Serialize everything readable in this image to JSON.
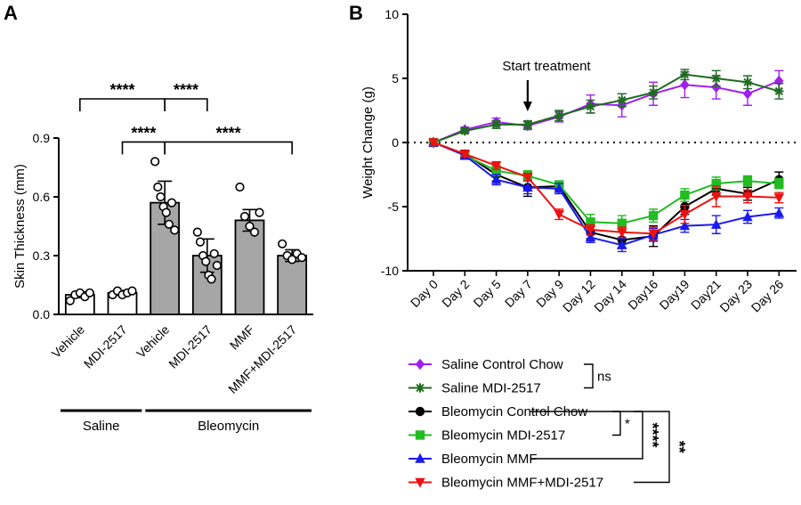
{
  "panel_labels": [
    "A",
    "B"
  ],
  "chart_data": [
    {
      "type": "bar",
      "panel": "A",
      "ylabel": "Skin Thickness (mm)",
      "ylim": [
        0,
        0.9
      ],
      "yticks": [
        "0.0",
        "0.3",
        "0.6",
        "0.9"
      ],
      "categories": [
        "Vehicle",
        "MDI-2517",
        "Vehicle",
        "MDI-2517",
        "MMF",
        "MMF+MDI-2517"
      ],
      "bar_colors": [
        "#ffffff",
        "#ffffff",
        "#a6a6a6",
        "#a6a6a6",
        "#a6a6a6",
        "#a6a6a6"
      ],
      "values": [
        0.1,
        0.11,
        0.57,
        0.3,
        0.48,
        0.3
      ],
      "errors": [
        0.015,
        0.012,
        0.11,
        0.085,
        0.055,
        0.03
      ],
      "points": [
        [
          0.07,
          0.1,
          0.11,
          0.09,
          0.11
        ],
        [
          0.1,
          0.12,
          0.1,
          0.11,
          0.12
        ],
        [
          0.78,
          0.65,
          0.6,
          0.55,
          0.52,
          0.46,
          0.57,
          0.43
        ],
        [
          0.42,
          0.37,
          0.3,
          0.27,
          0.2,
          0.18,
          0.31,
          0.25
        ],
        [
          0.65,
          0.5,
          0.45,
          0.42,
          0.52
        ],
        [
          0.36,
          0.3,
          0.28,
          0.31,
          0.29
        ]
      ],
      "groups": [
        {
          "label": "Saline",
          "from": 0,
          "to": 1
        },
        {
          "label": "Bleomycin",
          "from": 2,
          "to": 5
        }
      ],
      "comparisons": [
        {
          "a": 0,
          "b": 2,
          "label": "****",
          "level": 1.1
        },
        {
          "a": 2,
          "b": 3,
          "label": "****",
          "level": 1.1
        },
        {
          "a": 1,
          "b": 2,
          "label": "****",
          "level": 0.88
        },
        {
          "a": 2,
          "b": 5,
          "label": "****",
          "level": 0.88
        }
      ]
    },
    {
      "type": "line",
      "panel": "B",
      "ylabel": "Weight Change (g)",
      "ylim": [
        -10,
        10
      ],
      "yticks": [
        "-10",
        "-5",
        "0",
        "5",
        "10"
      ],
      "categories": [
        "Day 0",
        "Day 2",
        "Day 5",
        "Day 7",
        "Day 9",
        "Day 12",
        "Day 14",
        "Day16",
        "Day19",
        "Day21",
        "Day 23",
        "Day 26"
      ],
      "annotation": {
        "text": "Start treatment",
        "at_category": "Day 7"
      },
      "zero_line": "dotted",
      "series": [
        {
          "name": "Saline Control Chow",
          "color": "#a020f0",
          "marker": "diamond",
          "values": [
            0,
            1.0,
            1.6,
            1.3,
            2.0,
            3.0,
            2.9,
            3.8,
            4.5,
            4.3,
            3.8,
            4.8
          ],
          "errors": [
            0.2,
            0.2,
            0.3,
            0.3,
            0.4,
            0.7,
            0.9,
            0.9,
            1.0,
            0.9,
            0.9,
            0.8
          ]
        },
        {
          "name": "Saline MDI-2517",
          "color": "#1f6b1f",
          "marker": "asterisk",
          "values": [
            0,
            0.9,
            1.4,
            1.4,
            2.1,
            2.8,
            3.3,
            3.9,
            5.3,
            5.0,
            4.7,
            4.0
          ],
          "errors": [
            0.2,
            0.2,
            0.3,
            0.3,
            0.4,
            0.5,
            0.5,
            0.5,
            0.4,
            0.6,
            0.5,
            0.6
          ]
        },
        {
          "name": "Bleomycin Control Chow",
          "color": "#000000",
          "marker": "circle",
          "values": [
            0,
            -0.9,
            -2.5,
            -3.5,
            -3.4,
            -7.0,
            -7.6,
            -7.3,
            -5.0,
            -3.6,
            -4.0,
            -2.9
          ],
          "errors": [
            0.2,
            0.3,
            0.5,
            0.7,
            0.3,
            0.5,
            0.6,
            0.8,
            0.6,
            0.5,
            0.5,
            0.6
          ]
        },
        {
          "name": "Bleomycin MDI-2517",
          "color": "#22bb22",
          "marker": "square",
          "values": [
            0,
            -1.0,
            -2.2,
            -2.6,
            -3.3,
            -6.2,
            -6.3,
            -5.7,
            -4.1,
            -3.2,
            -3.0,
            -3.2
          ],
          "errors": [
            0.2,
            0.3,
            0.4,
            0.4,
            0.3,
            0.6,
            0.6,
            0.5,
            0.5,
            0.5,
            0.4,
            0.4
          ]
        },
        {
          "name": "Bleomycin MMF",
          "color": "#1a1aee",
          "marker": "triangle",
          "values": [
            0,
            -1.0,
            -2.9,
            -3.5,
            -3.6,
            -7.4,
            -8.0,
            -7.2,
            -6.5,
            -6.4,
            -5.8,
            -5.5
          ],
          "errors": [
            0.2,
            0.3,
            0.4,
            0.5,
            0.4,
            0.4,
            0.5,
            0.5,
            0.5,
            0.7,
            0.5,
            0.4
          ]
        },
        {
          "name": "Bleomycin MMF+MDI-2517",
          "color": "#ee1111",
          "marker": "triangle-down",
          "values": [
            0,
            -0.9,
            -1.8,
            -2.7,
            -5.6,
            -6.8,
            -7.0,
            -7.1,
            -5.6,
            -4.2,
            -4.2,
            -4.3
          ],
          "errors": [
            0.2,
            0.2,
            0.3,
            0.3,
            0.4,
            0.4,
            0.4,
            0.5,
            0.7,
            0.8,
            0.5,
            0.4
          ]
        }
      ],
      "legend_position": "bottom",
      "legend_brackets": [
        {
          "rows": [
            0,
            1
          ],
          "label": "ns"
        },
        {
          "rows": [
            2,
            3
          ],
          "label": "*"
        },
        {
          "rows": [
            2,
            4
          ],
          "label": "****"
        },
        {
          "rows": [
            2,
            5
          ],
          "label": "**"
        }
      ]
    }
  ]
}
